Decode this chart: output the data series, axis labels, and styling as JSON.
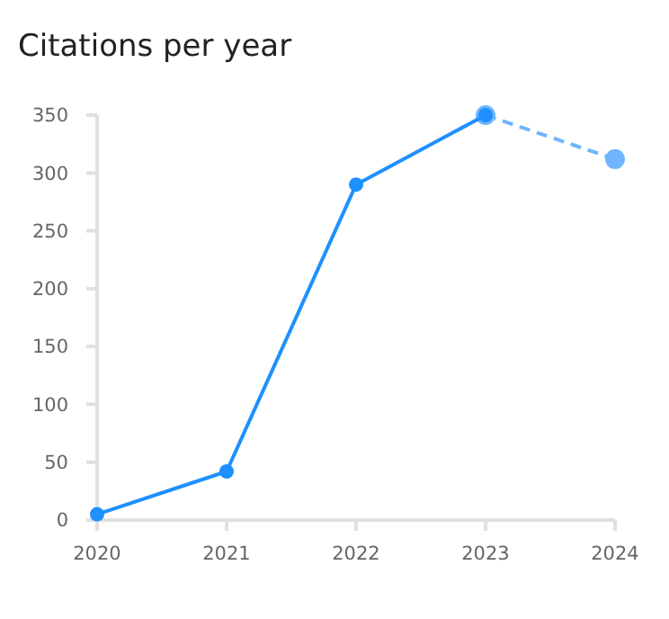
{
  "chart_data": {
    "type": "line",
    "title": "Citations per year",
    "categories": [
      "2020",
      "2021",
      "2022",
      "2023",
      "2024"
    ],
    "series": [
      {
        "color": "#1e90ff",
        "values": [
          5,
          42,
          290,
          350,
          null
        ],
        "line_style": "solid",
        "marker": "circle"
      },
      {
        "color": "#6fb5ff",
        "values": [
          null,
          null,
          null,
          350,
          312
        ],
        "line_style": "dashed",
        "marker": "circle"
      }
    ],
    "ylim": [
      0,
      350
    ],
    "yticks": [
      0,
      50,
      100,
      150,
      200,
      250,
      300,
      350
    ],
    "grid": false
  }
}
